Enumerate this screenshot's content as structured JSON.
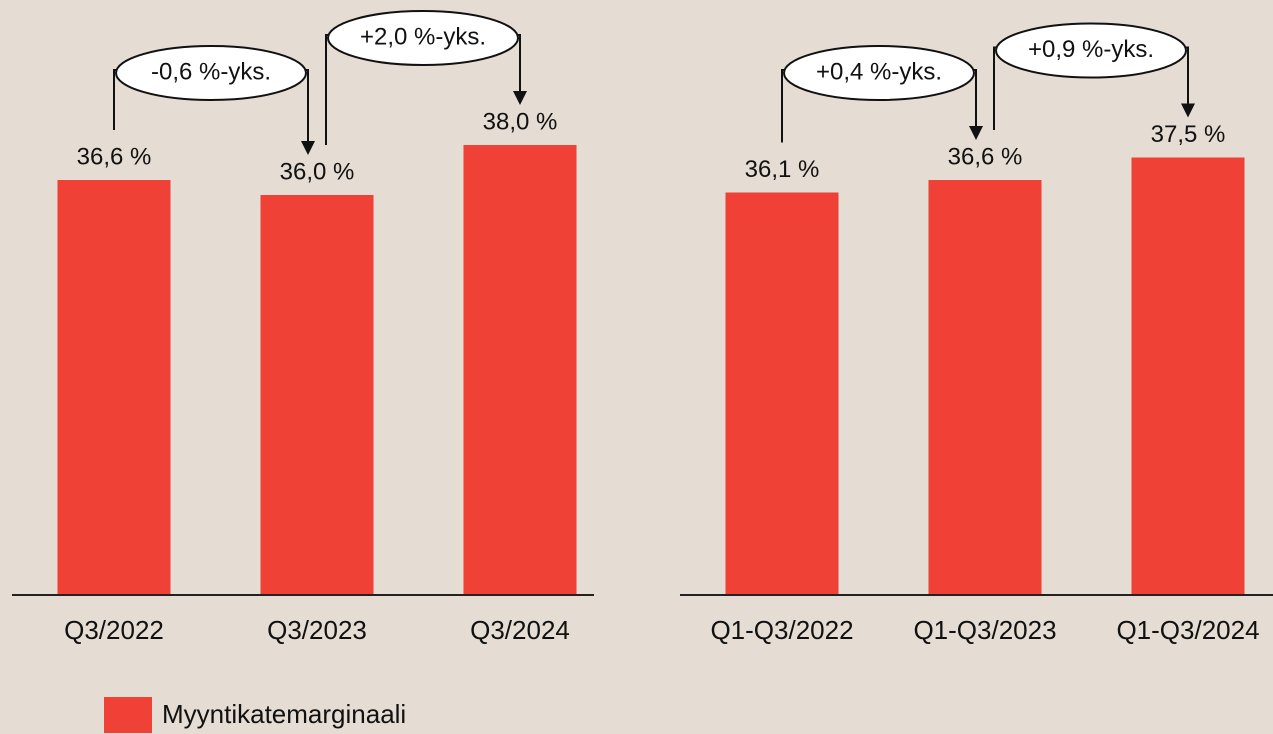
{
  "chart_data": [
    {
      "type": "bar",
      "categories": [
        "Q3/2022",
        "Q3/2023",
        "Q3/2024"
      ],
      "values": [
        36.6,
        36.0,
        38.0
      ],
      "value_labels": [
        "36,6 %",
        "36,0 %",
        "38,0 %"
      ],
      "annotations": [
        "-0,6 %-yks.",
        "+2,0 %-yks."
      ],
      "ylim": [
        20,
        40
      ]
    },
    {
      "type": "bar",
      "categories": [
        "Q1-Q3/2022",
        "Q1-Q3/2023",
        "Q1-Q3/2024"
      ],
      "values": [
        36.1,
        36.6,
        37.5
      ],
      "value_labels": [
        "36,1 %",
        "36,6 %",
        "37,5 %"
      ],
      "annotations": [
        "+0,4 %-yks.",
        "+0,9 %-yks."
      ],
      "ylim": [
        20,
        40
      ]
    }
  ],
  "legend": {
    "label": "Myyntikatemarginaali",
    "color": "#ef4136"
  }
}
